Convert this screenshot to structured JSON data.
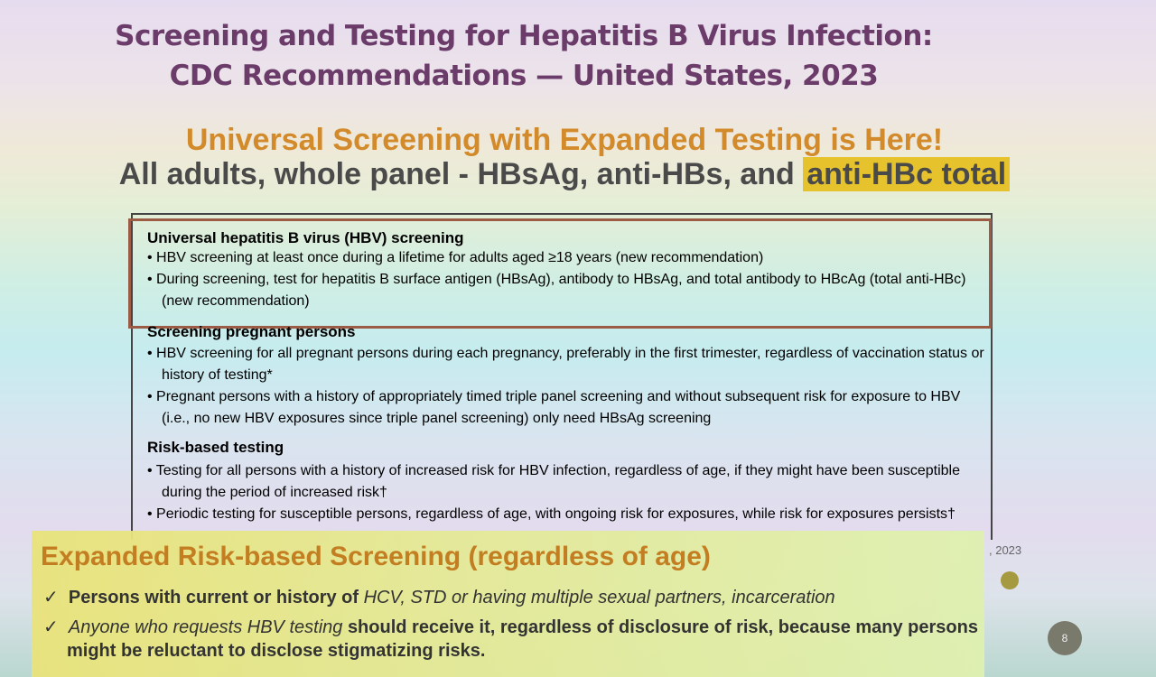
{
  "slide": {
    "title_line1": "Screening and Testing for Hepatitis B Virus Infection:",
    "title_line2": "CDC Recommendations — United States, 2023",
    "headline": "Universal Screening with Expanded Testing is Here!",
    "subheadline": "All adults, whole panel - HBsAg, anti-HBs, and ",
    "subheadline_highlight": "anti-HBc total",
    "page_number": "8",
    "year_fragment": ", 2023"
  },
  "document": {
    "sections": [
      {
        "heading": "Universal hepatitis B virus (HBV) screening",
        "items": [
          "HBV screening at least once during a lifetime for adults aged ≥18 years (new recommendation)",
          "During screening, test for hepatitis B surface antigen (HBsAg), antibody to HBsAg, and total antibody to HBcAg (total anti-HBc) (new recommendation)"
        ]
      },
      {
        "heading": "Screening pregnant persons",
        "items": [
          "HBV screening for all pregnant persons during each pregnancy, preferably in the first trimester, regardless of vaccination status or history of testing*",
          "Pregnant persons with a history of appropriately timed triple panel screening and without subsequent risk for exposure to HBV (i.e., no new HBV exposures since triple panel screening) only need HBsAg screening"
        ]
      },
      {
        "heading": "Risk-based testing",
        "items": [
          "Testing for all persons with a history of increased risk for HBV infection, regardless of age, if they might have been susceptible during the period of increased risk†",
          "Periodic testing for susceptible persons, regardless of age, with ongoing risk for exposures, while risk for exposures persists†"
        ]
      }
    ]
  },
  "callout": {
    "heading": "Expanded Risk-based Screening (regardless of age)",
    "check1_a": "Persons with current or history of ",
    "check1_b": "HCV, STD or having multiple sexual partners, incarceration",
    "check2_a": "Anyone who requests HBV testing ",
    "check2_b": "should receive it, regardless of disclosure of risk, because many persons might be reluctant to disclose stigmatizing risks."
  }
}
